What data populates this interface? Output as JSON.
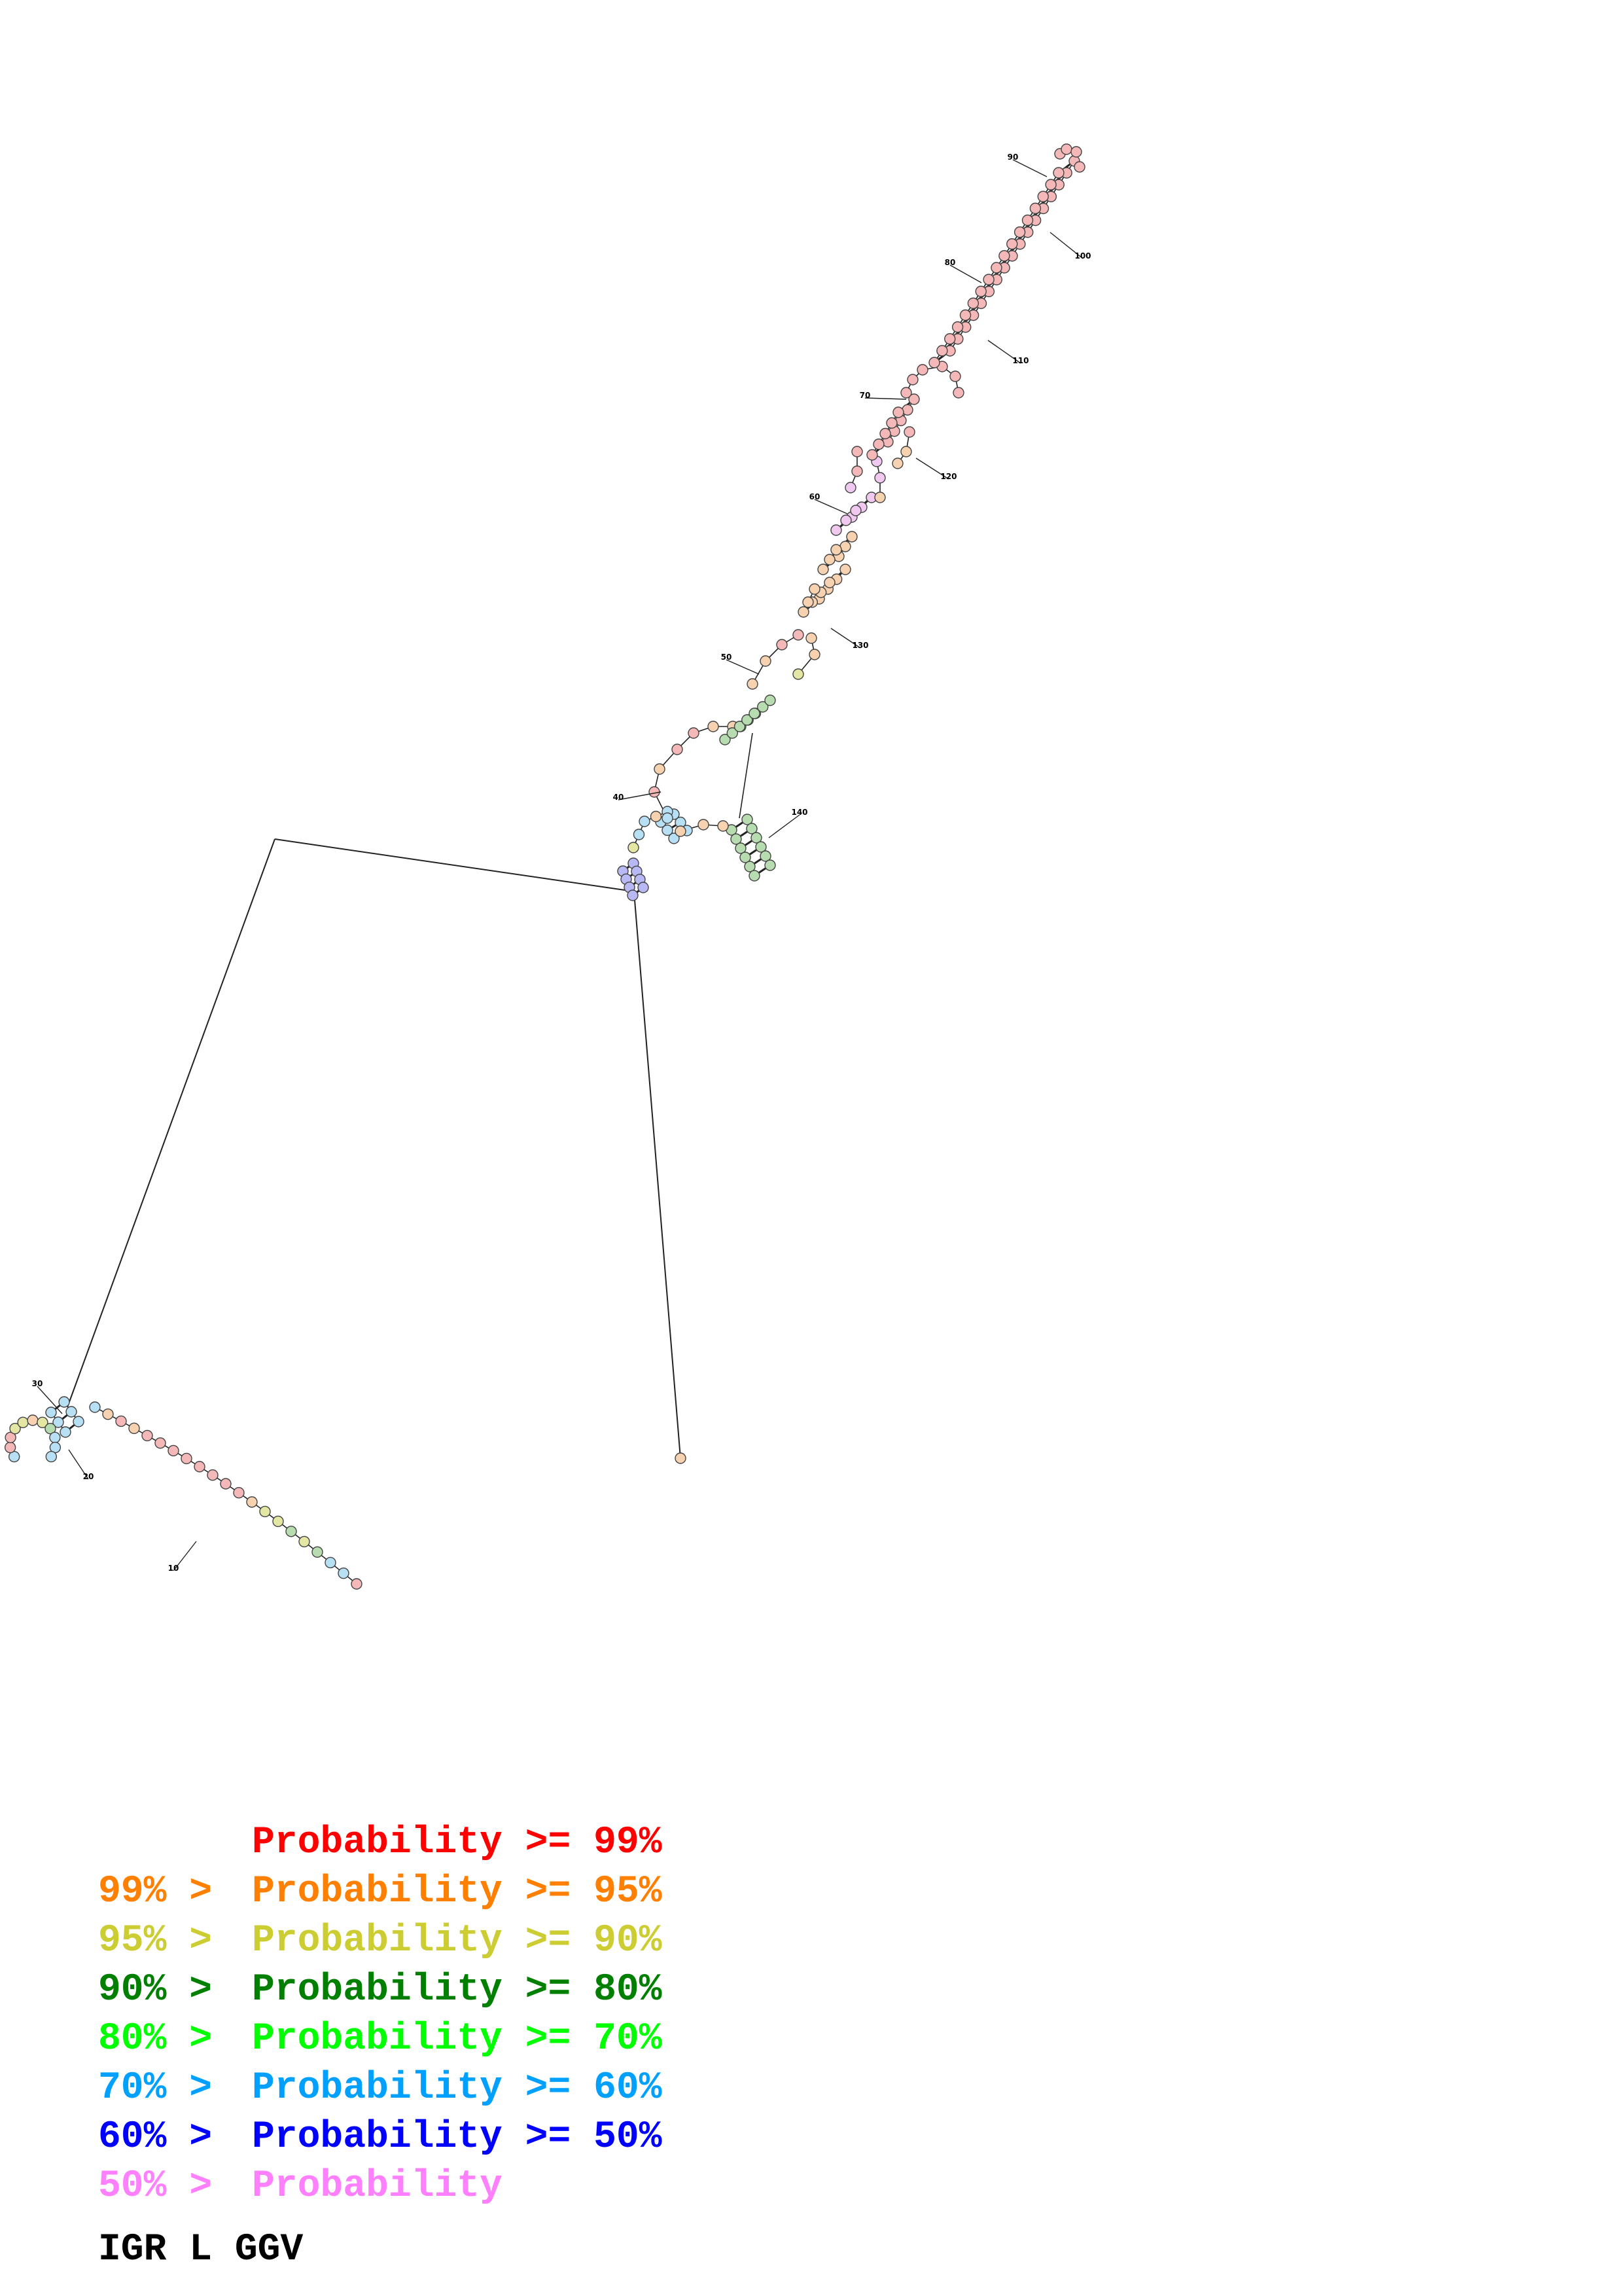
{
  "legend": {
    "rows": [
      {
        "prefix": "",
        "label": "Probability",
        "suffix": ">= 99%",
        "color": "#ff0000"
      },
      {
        "prefix": "99% >",
        "label": "Probability",
        "suffix": ">= 95%",
        "color": "#ff7f00"
      },
      {
        "prefix": "95% >",
        "label": "Probability",
        "suffix": ">= 90%",
        "color": "#cccc33"
      },
      {
        "prefix": "90% >",
        "label": "Probability",
        "suffix": ">= 80%",
        "color": "#007f00"
      },
      {
        "prefix": "80% >",
        "label": "Probability",
        "suffix": ">= 70%",
        "color": "#00ff00"
      },
      {
        "prefix": "70% >",
        "label": "Probability",
        "suffix": ">= 60%",
        "color": "#00a0ff"
      },
      {
        "prefix": "60% >",
        "label": "Probability",
        "suffix": ">= 50%",
        "color": "#0000ff"
      },
      {
        "prefix": "50% >",
        "label": "Probability",
        "suffix": "",
        "color": "#ff80ff"
      }
    ]
  },
  "caption": "IGR L GGV",
  "position_labels": [
    "10",
    "20",
    "30",
    "40",
    "50",
    "60",
    "70",
    "80",
    "90",
    "100",
    "110",
    "120",
    "130",
    "140"
  ],
  "probability_class_fill": {
    "p99": "#f5b8b8",
    "p95": "#f7d2b0",
    "p90": "#e4e6a4",
    "p80": "#b7dcb0",
    "p70": "#b8f0b8",
    "p60": "#b8e0f5",
    "p50": "#b8b8f5",
    "p_low": "#f0c8f0"
  }
}
